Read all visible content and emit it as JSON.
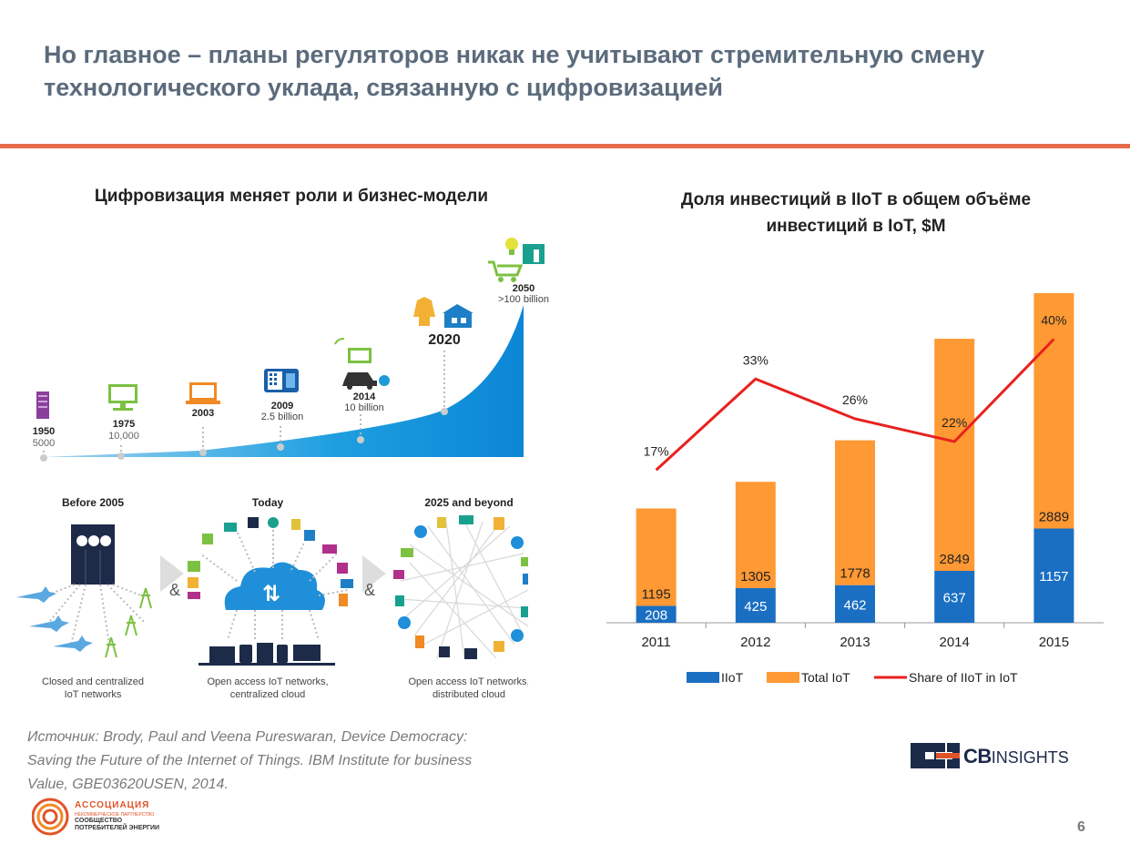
{
  "slide": {
    "title_line1": "Но главное – планы регуляторов никак не учитывают стремительную смену",
    "title_line2": "технологического уклада, связанную с цифровизацией",
    "page_number": "6",
    "source_line1": "Источник:  Brody, Paul and Veena Pureswaran, Device Democracy:",
    "source_line2": "Saving the Future of the Internet of Things. IBM Institute for business",
    "source_line3": "Value, GBE03620USEN, 2014.",
    "accent_color": "#e56b4a"
  },
  "left_panel": {
    "heading": "Цифровизация меняет роли и бизнес-модели",
    "milestones": [
      {
        "year": "1950",
        "count": "5000"
      },
      {
        "year": "1975",
        "count": "10,000"
      },
      {
        "year": "2003",
        "count": ""
      },
      {
        "year": "2009",
        "count": "2.5 billion"
      },
      {
        "year": "2014",
        "count": "10 billion"
      },
      {
        "year": "2020",
        "count": ""
      },
      {
        "year": "2050",
        "count": ">100 billion"
      }
    ],
    "network": {
      "before_title": "Before 2005",
      "today_title": "Today",
      "future_title": "2025 and beyond",
      "before_caption_1": "Closed and centralized",
      "before_caption_2": "IoT networks",
      "today_caption_1": "Open access IoT networks,",
      "today_caption_2": "centralized cloud",
      "future_caption_1": "Open access IoT networks,",
      "future_caption_2": "distributed cloud",
      "ampersand": "&"
    }
  },
  "right_panel": {
    "heading_line1": "Доля инвестиций в IIoT в общем объёме",
    "heading_line2": "инвестиций в IoT, $M"
  },
  "logos": {
    "assoc_title": "АССОЦИАЦИЯ",
    "assoc_sub": "НЕКОММЕРЧЕСКОЕ ПАРТНЕРСТВО",
    "assoc_line1": "СООБЩЕСТВО",
    "assoc_line2": "ПОТРЕБИТЕЛЕЙ ЭНЕРГИИ",
    "cb_bold": "CB",
    "cb_light": "INSIGHTS"
  },
  "chart_data": {
    "type": "bar",
    "stacked": true,
    "categories": [
      "2011",
      "2012",
      "2013",
      "2014",
      "2015"
    ],
    "series": [
      {
        "name": "IIoT",
        "color": "#1a6fc2",
        "values": [
          208,
          425,
          462,
          637,
          1157
        ]
      },
      {
        "name": "Total IoT",
        "color": "#ff9933",
        "values": [
          1195,
          1305,
          1778,
          2849,
          2889
        ]
      },
      {
        "name": "Share of IIoT in IoT",
        "color": "#e8211f",
        "type": "line",
        "values": [
          17,
          33,
          26,
          22,
          40
        ],
        "labels": [
          "17%",
          "33%",
          "26%",
          "22%",
          "40%"
        ]
      }
    ],
    "legend_position": "bottom",
    "grid": false
  }
}
